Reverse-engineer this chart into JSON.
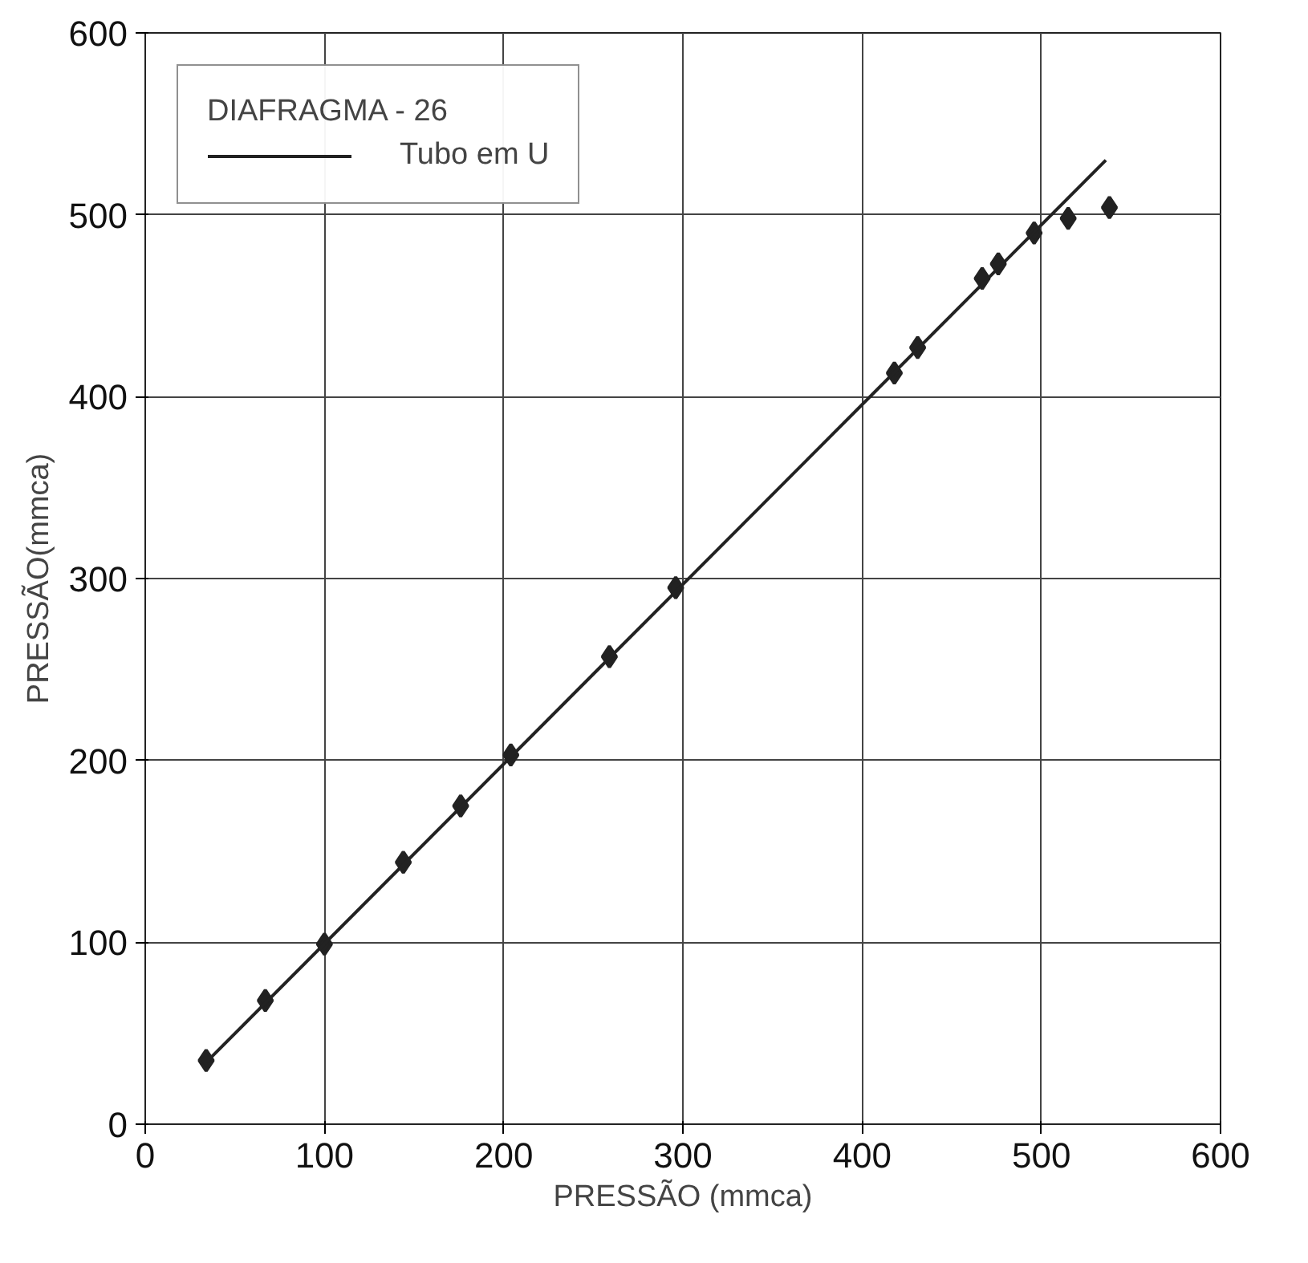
{
  "chart_data": {
    "type": "scatter",
    "xlabel": "PRESSÃO (mmca)",
    "ylabel": "PRESSÃO(mmca)",
    "legend_title": "DIAFRAGMA - 26",
    "xlim": [
      0,
      600
    ],
    "ylim": [
      0,
      600
    ],
    "xticks": [
      0,
      100,
      200,
      300,
      400,
      500,
      600
    ],
    "yticks": [
      0,
      100,
      200,
      300,
      400,
      500,
      600
    ],
    "grid": true,
    "legend": "top left",
    "series": [
      {
        "marker": "diamond",
        "color": "#222222",
        "x": [
          34,
          67,
          100,
          144,
          176,
          204,
          259,
          296,
          418,
          431,
          467,
          476,
          496,
          515,
          538
        ],
        "values": [
          35,
          68,
          99,
          144,
          175,
          203,
          257,
          295,
          413,
          427,
          465,
          473,
          490,
          498,
          504
        ]
      },
      {
        "type": "line",
        "name": "Tubo em U",
        "color": "#222222",
        "line_style": "solid",
        "x": [
          34,
          536
        ],
        "values": [
          34,
          530
        ]
      }
    ]
  }
}
